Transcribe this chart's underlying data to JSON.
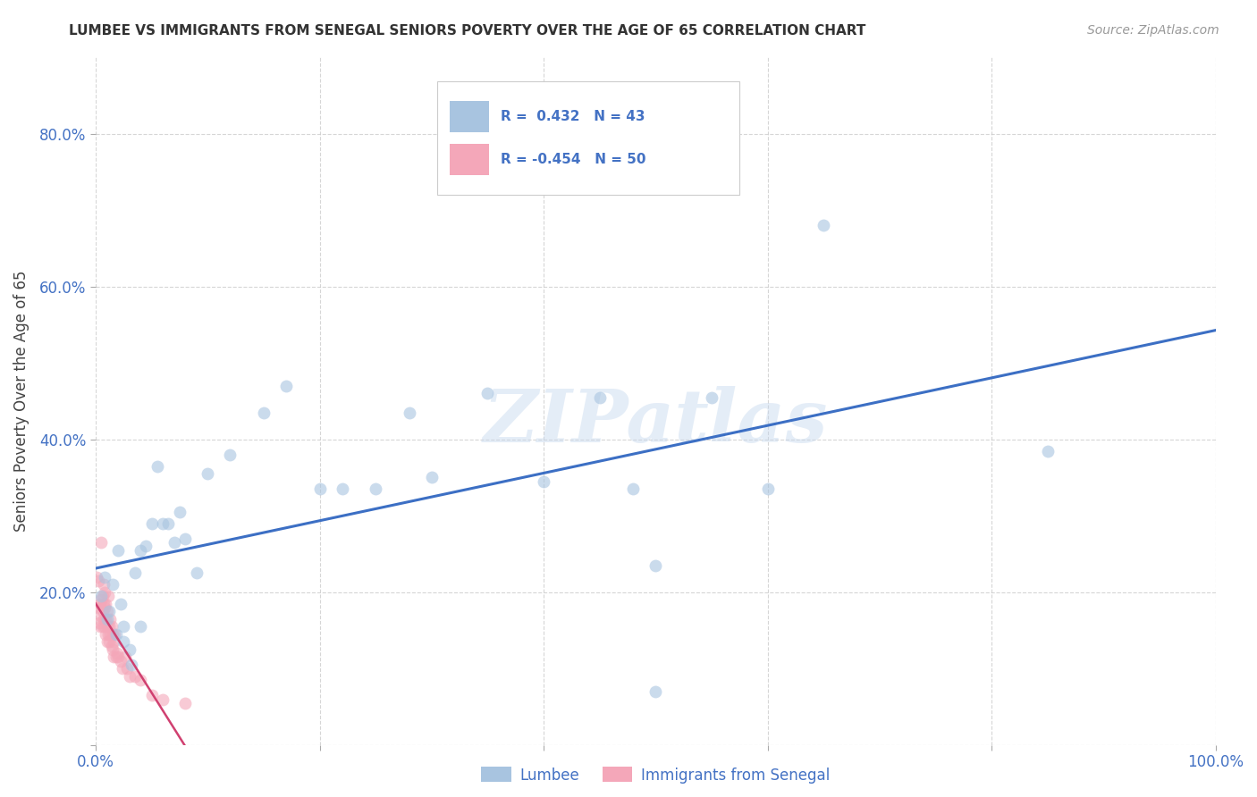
{
  "title": "LUMBEE VS IMMIGRANTS FROM SENEGAL SENIORS POVERTY OVER THE AGE OF 65 CORRELATION CHART",
  "source": "Source: ZipAtlas.com",
  "ylabel": "Seniors Poverty Over the Age of 65",
  "xlim": [
    0.0,
    1.0
  ],
  "ylim": [
    0.0,
    0.9
  ],
  "lumbee_R": 0.432,
  "lumbee_N": 43,
  "senegal_R": -0.454,
  "senegal_N": 50,
  "lumbee_color": "#a8c4e0",
  "senegal_color": "#f4a7b9",
  "line_lumbee_color": "#3c6fc4",
  "line_senegal_color": "#d04070",
  "text_color": "#4472c4",
  "watermark": "ZIPatlas",
  "lumbee_x": [
    0.005,
    0.008,
    0.01,
    0.012,
    0.015,
    0.018,
    0.02,
    0.022,
    0.025,
    0.025,
    0.03,
    0.032,
    0.035,
    0.04,
    0.04,
    0.045,
    0.05,
    0.055,
    0.06,
    0.065,
    0.07,
    0.075,
    0.08,
    0.09,
    0.1,
    0.12,
    0.15,
    0.17,
    0.2,
    0.22,
    0.25,
    0.28,
    0.3,
    0.35,
    0.4,
    0.45,
    0.48,
    0.5,
    0.55,
    0.6,
    0.65,
    0.85,
    0.5
  ],
  "lumbee_y": [
    0.195,
    0.22,
    0.165,
    0.175,
    0.21,
    0.145,
    0.255,
    0.185,
    0.155,
    0.135,
    0.125,
    0.105,
    0.225,
    0.155,
    0.255,
    0.26,
    0.29,
    0.365,
    0.29,
    0.29,
    0.265,
    0.305,
    0.27,
    0.225,
    0.355,
    0.38,
    0.435,
    0.47,
    0.335,
    0.335,
    0.335,
    0.435,
    0.35,
    0.46,
    0.345,
    0.455,
    0.335,
    0.235,
    0.455,
    0.335,
    0.68,
    0.385,
    0.07
  ],
  "senegal_x": [
    0.001,
    0.002,
    0.002,
    0.003,
    0.003,
    0.004,
    0.004,
    0.005,
    0.005,
    0.006,
    0.006,
    0.006,
    0.007,
    0.007,
    0.007,
    0.008,
    0.008,
    0.008,
    0.009,
    0.009,
    0.009,
    0.01,
    0.01,
    0.01,
    0.011,
    0.011,
    0.012,
    0.012,
    0.013,
    0.013,
    0.014,
    0.014,
    0.015,
    0.015,
    0.016,
    0.016,
    0.017,
    0.018,
    0.019,
    0.02,
    0.022,
    0.024,
    0.026,
    0.028,
    0.03,
    0.035,
    0.04,
    0.05,
    0.06,
    0.08
  ],
  "senegal_y": [
    0.22,
    0.215,
    0.17,
    0.18,
    0.16,
    0.185,
    0.155,
    0.265,
    0.19,
    0.195,
    0.175,
    0.155,
    0.21,
    0.185,
    0.165,
    0.2,
    0.18,
    0.155,
    0.185,
    0.165,
    0.145,
    0.175,
    0.155,
    0.135,
    0.195,
    0.145,
    0.155,
    0.135,
    0.165,
    0.145,
    0.155,
    0.13,
    0.145,
    0.125,
    0.135,
    0.115,
    0.145,
    0.115,
    0.12,
    0.115,
    0.11,
    0.1,
    0.115,
    0.1,
    0.09,
    0.09,
    0.085,
    0.065,
    0.06,
    0.055
  ]
}
